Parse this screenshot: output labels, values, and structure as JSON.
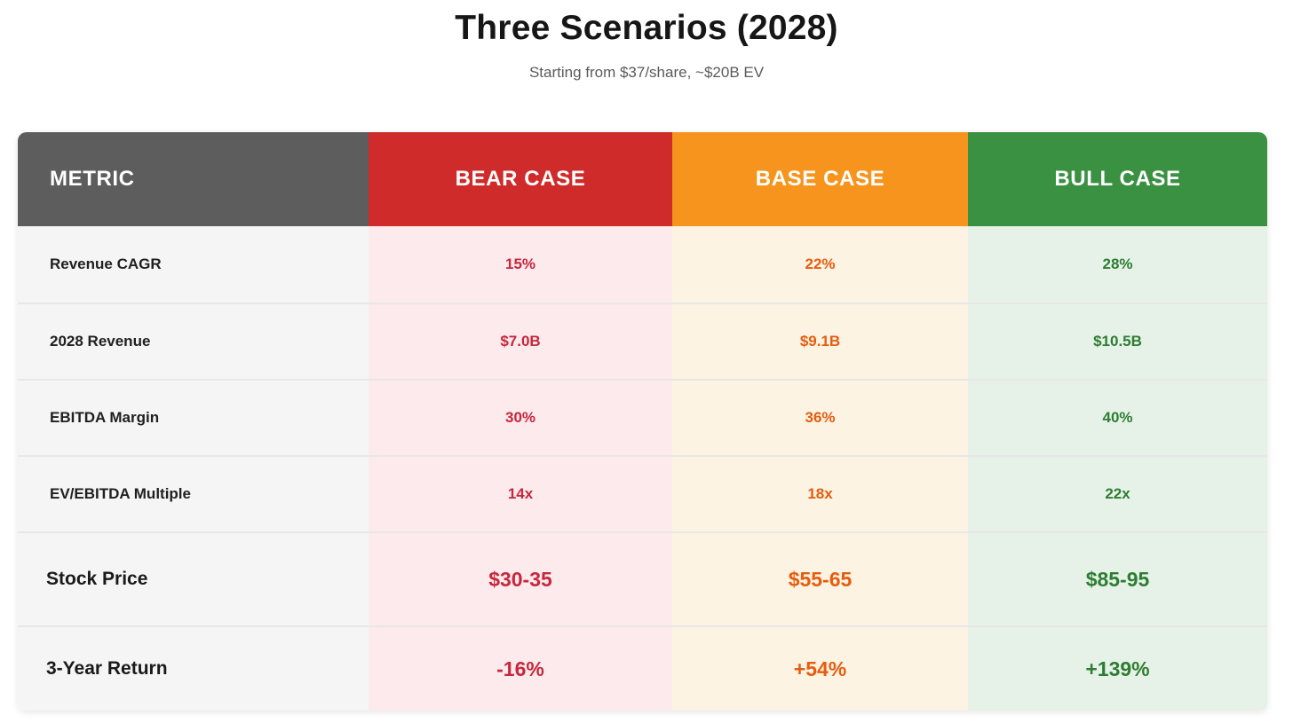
{
  "page": {
    "title": "Three Scenarios (2028)",
    "subtitle": "Starting from $37/share, ~$20B EV"
  },
  "table": {
    "columns": [
      {
        "label": "METRIC",
        "header_bg": "#5d5d5d",
        "cell_bg": "#f5f5f5",
        "text_color": "#202020"
      },
      {
        "label": "BEAR CASE",
        "header_bg": "#d02b2b",
        "cell_bg": "#fdeaec",
        "text_color": "#c5283d"
      },
      {
        "label": "BASE CASE",
        "header_bg": "#f7941d",
        "cell_bg": "#fdf3e3",
        "text_color": "#e65c0f"
      },
      {
        "label": "BULL CASE",
        "header_bg": "#3a9142",
        "cell_bg": "#e6f2e8",
        "text_color": "#2e7d32"
      }
    ],
    "rows": [
      {
        "metric": "Revenue CAGR",
        "bear": "15%",
        "base": "22%",
        "bull": "28%"
      },
      {
        "metric": "2028 Revenue",
        "bear": "$7.0B",
        "base": "$9.1B",
        "bull": "$10.5B"
      },
      {
        "metric": "EBITDA Margin",
        "bear": "30%",
        "base": "36%",
        "bull": "40%"
      },
      {
        "metric": "EV/EBITDA Multiple",
        "bear": "14x",
        "base": "18x",
        "bull": "22x"
      },
      {
        "metric": "Stock Price",
        "bear": "$30-35",
        "base": "$55-65",
        "bull": "$85-95"
      },
      {
        "metric": "3-Year Return",
        "bear": "-16%",
        "base": "+54%",
        "bull": "+139%"
      }
    ]
  },
  "chart_data": {
    "type": "table",
    "title": "Three Scenarios (2028)",
    "subtitle": "Starting from $37/share, ~$20B EV",
    "columns": [
      "METRIC",
      "BEAR CASE",
      "BASE CASE",
      "BULL CASE"
    ],
    "rows": [
      [
        "Revenue CAGR",
        "15%",
        "22%",
        "28%"
      ],
      [
        "2028 Revenue",
        "$7.0B",
        "$9.1B",
        "$10.5B"
      ],
      [
        "EBITDA Margin",
        "30%",
        "36%",
        "40%"
      ],
      [
        "EV/EBITDA Multiple",
        "14x",
        "18x",
        "22x"
      ],
      [
        "Stock Price",
        "$30-35",
        "$55-65",
        "$85-95"
      ],
      [
        "3-Year Return",
        "-16%",
        "+54%",
        "+139%"
      ]
    ],
    "notes": "Scenario analysis table; bear/base/bull value columns are color-coded red/orange/green"
  }
}
